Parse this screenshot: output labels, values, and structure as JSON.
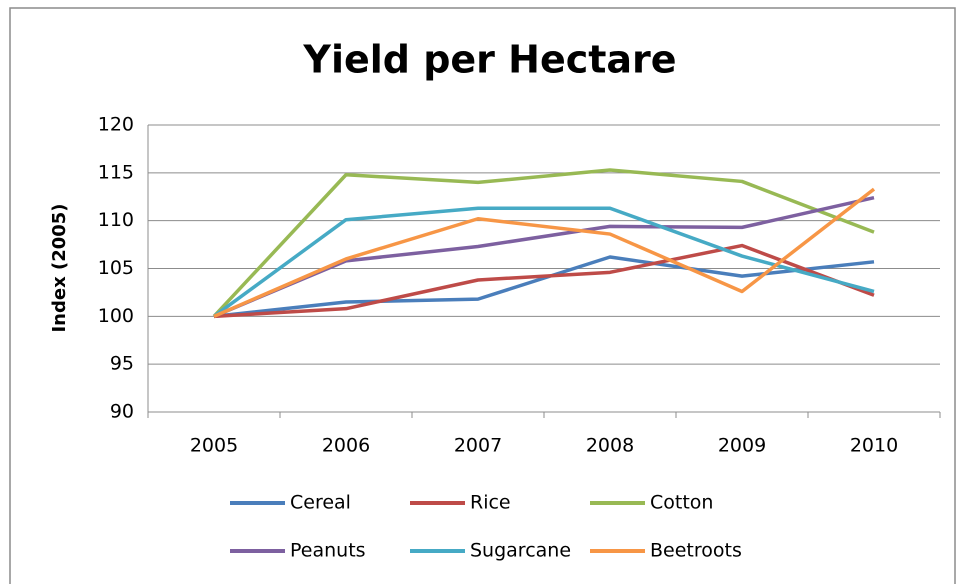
{
  "chart_data": {
    "type": "line",
    "title": "Yield per Hectare",
    "y_label": "Index (2005)",
    "categories": [
      "2005",
      "2006",
      "2007",
      "2008",
      "2009",
      "2010"
    ],
    "series": [
      {
        "name": "Cereal",
        "color": "#4a7ebb",
        "values": [
          100,
          101.5,
          101.8,
          106.2,
          104.2,
          105.7
        ]
      },
      {
        "name": "Rice",
        "color": "#be4b48",
        "values": [
          100,
          100.8,
          103.8,
          104.6,
          107.4,
          102.2
        ]
      },
      {
        "name": "Cotton",
        "color": "#98b954",
        "values": [
          100,
          114.8,
          114,
          115.3,
          114.1,
          108.8
        ]
      },
      {
        "name": "Peanuts",
        "color": "#7d60a0",
        "values": [
          100,
          105.8,
          107.3,
          109.4,
          109.3,
          112.4
        ]
      },
      {
        "name": "Sugarcane",
        "color": "#46aac5",
        "values": [
          100,
          110.1,
          111.3,
          111.3,
          106.3,
          102.6
        ]
      },
      {
        "name": "Beetroots",
        "color": "#f79646",
        "values": [
          100,
          106,
          110.2,
          108.6,
          102.6,
          113.3
        ]
      }
    ],
    "ylim": [
      90,
      120
    ],
    "yticks": [
      90,
      95,
      100,
      105,
      110,
      115,
      120
    ],
    "grid": true,
    "legend": "bottom"
  }
}
